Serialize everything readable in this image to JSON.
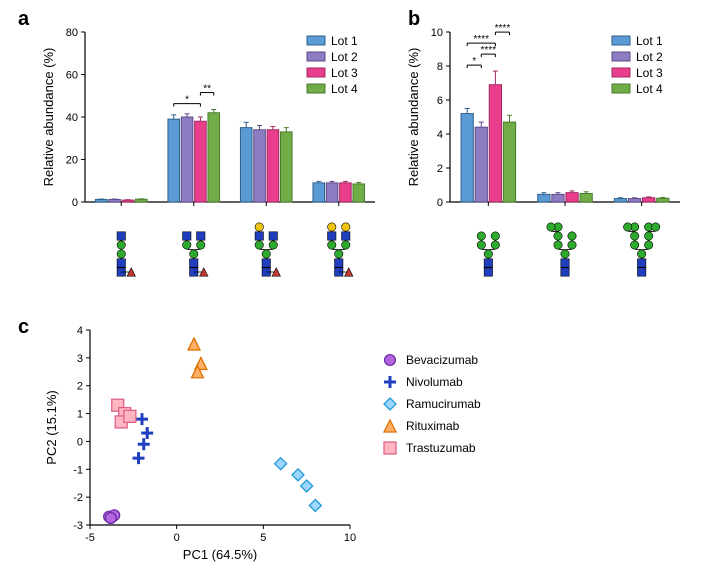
{
  "labels": {
    "panelA": "a",
    "panelB": "b",
    "panelC": "c",
    "yAxisA": "Relative abundance (%)",
    "yAxisB": "Relative abundance (%)",
    "xAxisC": "PC1 (64.5%)",
    "yAxisC": "PC2 (15.1%)"
  },
  "colors": {
    "axis": "#000000",
    "bg": "#ffffff",
    "lot1_fill": "#5b9bd5",
    "lot1_stroke": "#2e5f8a",
    "lot2_fill": "#8e7cc3",
    "lot2_stroke": "#5e4a8a",
    "lot3_fill": "#e83e8c",
    "lot3_stroke": "#a12a62",
    "lot4_fill": "#70ad47",
    "lot4_stroke": "#4a7a2e",
    "bev_fill": "#b266e0",
    "bev_stroke": "#6f2da8",
    "niv_fill": "#1f3fbf",
    "niv_stroke": "#1f3fbf",
    "ram_fill": "#9ed6ff",
    "ram_stroke": "#1f9bd6",
    "rit_fill": "#ffb066",
    "rit_stroke": "#e07000",
    "tra_fill": "#ffb6c1",
    "tra_stroke": "#e06090",
    "glycan_blue": "#1f3fbf",
    "glycan_green": "#2eab2e",
    "glycan_red": "#c0392b",
    "glycan_yellow": "#f1c40f"
  },
  "lotLegend": [
    "Lot 1",
    "Lot 2",
    "Lot 3",
    "Lot 4"
  ],
  "panelA": {
    "ylim": [
      0,
      80
    ],
    "ytick_step": 20,
    "groups": [
      {
        "values": [
          1.2,
          1.2,
          0.9,
          1.3
        ],
        "err": [
          0.2,
          0.2,
          0.2,
          0.2
        ]
      },
      {
        "values": [
          39,
          40,
          38,
          42
        ],
        "err": [
          2,
          1.5,
          2,
          1.5
        ],
        "sig": [
          {
            "a": 0,
            "b": 2,
            "label": "*",
            "level": 0
          },
          {
            "a": 2,
            "b": 3,
            "label": "**",
            "level": 1
          }
        ]
      },
      {
        "values": [
          35,
          34,
          34,
          33
        ],
        "err": [
          2.5,
          2,
          1.5,
          2
        ],
        "sig": []
      },
      {
        "values": [
          9,
          9,
          9,
          8.5
        ],
        "err": [
          0.7,
          0.7,
          0.7,
          0.7
        ]
      }
    ],
    "glycans": [
      {
        "type": "complex",
        "gal": 0,
        "fucose": true,
        "bisect": false
      },
      {
        "type": "complex",
        "gal": 0,
        "fucose": true,
        "bisect": false,
        "arms": 2
      },
      {
        "type": "complex",
        "gal": 1,
        "fucose": true,
        "bisect": false,
        "arms": 2
      },
      {
        "type": "complex",
        "gal": 2,
        "fucose": true,
        "bisect": false,
        "arms": 2
      }
    ]
  },
  "panelB": {
    "ylim": [
      0,
      10
    ],
    "ytick_step": 2,
    "groups": [
      {
        "values": [
          5.2,
          4.4,
          6.9,
          4.7
        ],
        "err": [
          0.3,
          0.3,
          0.8,
          0.4
        ],
        "sig": [
          {
            "a": 0,
            "b": 1,
            "label": "*",
            "level": 0
          },
          {
            "a": 1,
            "b": 2,
            "label": "****",
            "level": 1
          },
          {
            "a": 0,
            "b": 2,
            "label": "****",
            "level": 2
          },
          {
            "a": 2,
            "b": 3,
            "label": "****",
            "level": 3
          }
        ]
      },
      {
        "values": [
          0.45,
          0.45,
          0.55,
          0.5
        ],
        "err": [
          0.1,
          0.1,
          0.1,
          0.1
        ]
      },
      {
        "values": [
          0.2,
          0.2,
          0.25,
          0.22
        ],
        "err": [
          0.05,
          0.05,
          0.05,
          0.05
        ]
      }
    ],
    "glycans": [
      {
        "type": "highman",
        "man": 5
      },
      {
        "type": "highman",
        "man": 6
      },
      {
        "type": "highman",
        "man": 7
      }
    ]
  },
  "panelC": {
    "xlim": [
      -5,
      10
    ],
    "ylim": [
      -3,
      4
    ],
    "xtick_step": 5,
    "ytick_step": 1,
    "series": [
      {
        "name": "Bevacizumab",
        "marker": "circle",
        "fillKey": "bev_fill",
        "strokeKey": "bev_stroke",
        "points": [
          [
            -3.9,
            -2.7
          ],
          [
            -3.7,
            -2.7
          ],
          [
            -3.6,
            -2.65
          ],
          [
            -3.8,
            -2.75
          ]
        ]
      },
      {
        "name": "Nivolumab",
        "marker": "plus",
        "fillKey": "niv_fill",
        "strokeKey": "niv_stroke",
        "points": [
          [
            -2.0,
            0.8
          ],
          [
            -1.7,
            0.3
          ],
          [
            -1.9,
            -0.1
          ],
          [
            -2.2,
            -0.6
          ]
        ]
      },
      {
        "name": "Ramucirumab",
        "marker": "diamond",
        "fillKey": "ram_fill",
        "strokeKey": "ram_stroke",
        "points": [
          [
            6.0,
            -0.8
          ],
          [
            7.0,
            -1.2
          ],
          [
            7.5,
            -1.6
          ],
          [
            8.0,
            -2.3
          ]
        ]
      },
      {
        "name": "Rituximab",
        "marker": "triangle",
        "fillKey": "rit_fill",
        "strokeKey": "rit_stroke",
        "points": [
          [
            1.0,
            3.5
          ],
          [
            1.4,
            2.8
          ],
          [
            1.2,
            2.5
          ]
        ]
      },
      {
        "name": "Trastuzumab",
        "marker": "square",
        "fillKey": "tra_fill",
        "strokeKey": "tra_stroke",
        "points": [
          [
            -3.4,
            1.3
          ],
          [
            -3.0,
            1.0
          ],
          [
            -3.2,
            0.7
          ],
          [
            -2.7,
            0.9
          ]
        ]
      }
    ]
  }
}
